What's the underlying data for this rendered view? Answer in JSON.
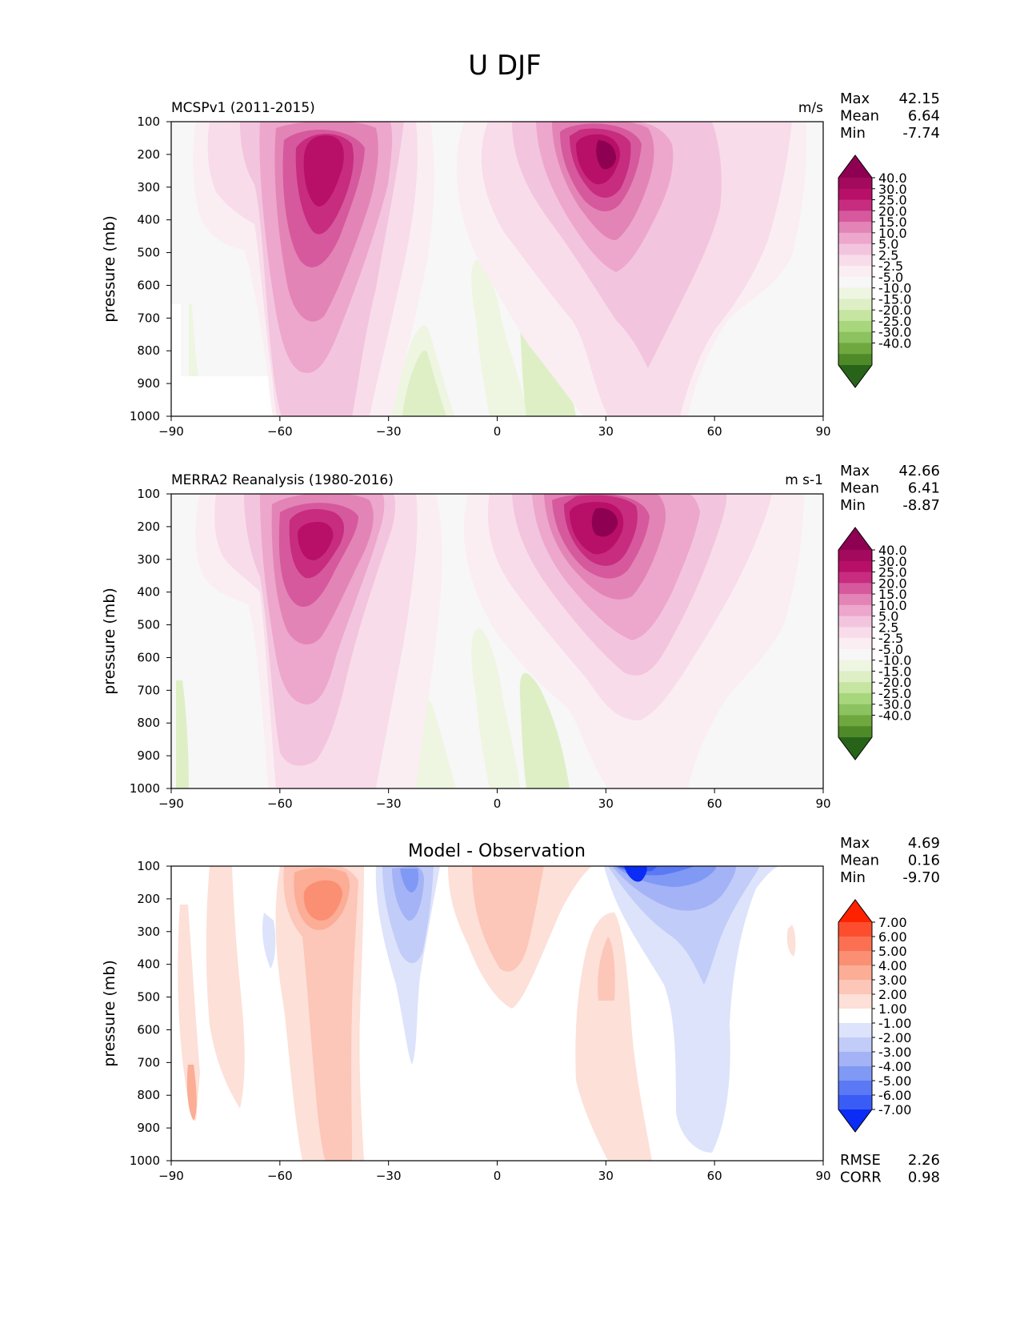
{
  "title": "U DJF",
  "panels": [
    {
      "title_left": "MCSPv1 (2011-2015)",
      "title_center": "",
      "units": "m/s",
      "stats": [
        {
          "label": "Max",
          "value": "42.15"
        },
        {
          "label": "Mean",
          "value": "6.64"
        },
        {
          "label": "Min",
          "value": "-7.74"
        }
      ],
      "extra_stats": []
    },
    {
      "title_left": "MERRA2 Reanalysis (1980-2016)",
      "title_center": "",
      "units": "m s-1",
      "stats": [
        {
          "label": "Max",
          "value": "42.66"
        },
        {
          "label": "Mean",
          "value": "6.41"
        },
        {
          "label": "Min",
          "value": "-8.87"
        }
      ],
      "extra_stats": []
    },
    {
      "title_left": "",
      "title_center": "Model - Observation",
      "units": "",
      "stats": [
        {
          "label": "Max",
          "value": "4.69"
        },
        {
          "label": "Mean",
          "value": "0.16"
        },
        {
          "label": "Min",
          "value": "-9.70"
        }
      ],
      "extra_stats": [
        {
          "label": "RMSE",
          "value": "2.26"
        },
        {
          "label": "CORR",
          "value": "0.98"
        }
      ]
    }
  ],
  "axes": {
    "ylabel": "pressure (mb)",
    "x_ticks": [
      "−90",
      "−60",
      "−30",
      "0",
      "30",
      "60",
      "90"
    ],
    "y_ticks": [
      "100",
      "200",
      "300",
      "400",
      "500",
      "600",
      "700",
      "800",
      "900",
      "1000"
    ]
  },
  "colorbars": {
    "field": {
      "labels": [
        "40.0",
        "30.0",
        "25.0",
        "20.0",
        "15.0",
        "10.0",
        "5.0",
        "2.5",
        "-2.5",
        "-5.0",
        "-10.0",
        "-15.0",
        "-20.0",
        "-25.0",
        "-30.0",
        "-40.0"
      ],
      "colors": [
        "#8e0152",
        "#a3095c",
        "#b80f68",
        "#c72c7f",
        "#d6599d",
        "#e384b6",
        "#eda6cc",
        "#f3c4de",
        "#f8dcea",
        "#faeef3",
        "#f7f7f7",
        "#eef5e1",
        "#deefc6",
        "#c5e5a0",
        "#a8d67c",
        "#8cc25f",
        "#6fa83e",
        "#4f8a29",
        "#276419"
      ]
    },
    "diff": {
      "labels": [
        "7.00",
        "6.00",
        "5.00",
        "4.00",
        "3.00",
        "2.00",
        "1.00",
        "-1.00",
        "-2.00",
        "-3.00",
        "-4.00",
        "-5.00",
        "-6.00",
        "-7.00"
      ],
      "colors": [
        "#ff2200",
        "#fc4e2f",
        "#fb7052",
        "#fb8f73",
        "#fbad96",
        "#fcc6b8",
        "#fde0d8",
        "#ffffff",
        "#dde3fb",
        "#c2ccf8",
        "#a3b3f6",
        "#8099f5",
        "#5b79f4",
        "#3a5cf6",
        "#0a2cf5"
      ]
    }
  },
  "chart_data": [
    {
      "type": "heatmap",
      "title": "MCSPv1 (2011-2015)",
      "ylabel": "pressure (mb)",
      "xlim": [
        -90,
        90
      ],
      "ylim": [
        1000,
        100
      ],
      "units": "m/s",
      "features": [
        {
          "lat": -47,
          "plev": 250,
          "value": 35
        },
        {
          "lat": 30,
          "plev": 200,
          "value": 42.15
        },
        {
          "lat": 7,
          "plev": 850,
          "value": -7.5
        },
        {
          "lat": -25,
          "plev": 900,
          "value": -5
        }
      ]
    },
    {
      "type": "heatmap",
      "title": "MERRA2 Reanalysis (1980-2016)",
      "ylabel": "pressure (mb)",
      "xlim": [
        -90,
        90
      ],
      "ylim": [
        1000,
        100
      ],
      "units": "m s-1",
      "features": [
        {
          "lat": -48,
          "plev": 250,
          "value": 38
        },
        {
          "lat": 31,
          "plev": 200,
          "value": 42.66
        },
        {
          "lat": 6,
          "plev": 800,
          "value": -8.5
        },
        {
          "lat": -22,
          "plev": 900,
          "value": -4
        }
      ]
    },
    {
      "type": "heatmap",
      "title": "Model - Observation",
      "ylabel": "pressure (mb)",
      "xlim": [
        -90,
        90
      ],
      "ylim": [
        1000,
        100
      ],
      "features": [
        {
          "lat": -46,
          "plev": 200,
          "value": 4.69
        },
        {
          "lat": -25,
          "plev": 200,
          "value": -5
        },
        {
          "lat": 38,
          "plev": 100,
          "value": -9.7
        },
        {
          "lat": 5,
          "plev": 300,
          "value": 3
        },
        {
          "lat": 55,
          "plev": 700,
          "value": -1.5
        }
      ]
    }
  ]
}
